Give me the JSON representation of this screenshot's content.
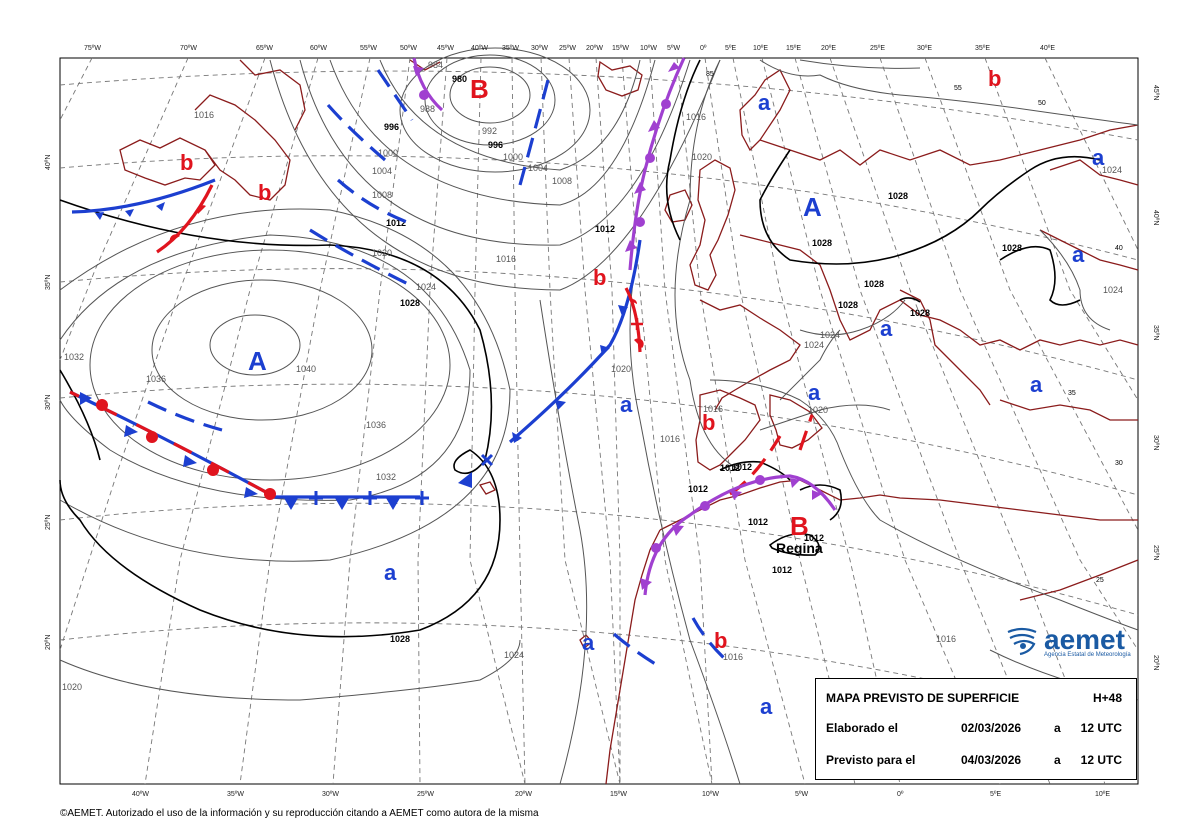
{
  "title_box": {
    "title": "MAPA PREVISTO DE SUPERFICIE",
    "lead": "H+48",
    "made_label": "Elaborado el",
    "made_date": "02/03/2026",
    "made_a": "a",
    "made_time": "12 UTC",
    "valid_label": "Previsto para el",
    "valid_date": "04/03/2026",
    "valid_a": "a",
    "valid_time": "12 UTC"
  },
  "logo": {
    "name": "aemet",
    "subtitle": "Agencia Estatal de Meteorología",
    "icon": "aemet-logo-icon",
    "color": "#1a5aa3"
  },
  "copyright": "©AEMET. Autorizado el uso de la información y su reproducción citando a AEMET como autora de la misma",
  "top_ticks": [
    "75ºW",
    "70ºW",
    "65ºW",
    "60ºW",
    "55ºW",
    "50ºW",
    "45ºW",
    "40ºW",
    "35ºW",
    "30ºW",
    "25ºW",
    "20ºW",
    "15ºW",
    "10ºW",
    "5ºW",
    "0º",
    "5ºE",
    "10ºE",
    "15ºE",
    "20ºE",
    "25ºE",
    "30ºE",
    "35ºE",
    "40ºE"
  ],
  "bottom_ticks": [
    "40ºW",
    "35ºW",
    "30ºW",
    "25ºW",
    "20ºW",
    "15ºW",
    "10ºW",
    "5ºW",
    "0º",
    "5ºE",
    "10ºE"
  ],
  "left_ticks": [
    "40ºN",
    "35ºN",
    "30ºN",
    "25ºN",
    "20ºN"
  ],
  "right_ticks": [
    "45ºN",
    "40ºN",
    "35ºN",
    "30ºN",
    "25ºN",
    "20ºN"
  ],
  "isobar_labels": [
    "980",
    "984",
    "988",
    "992",
    "996",
    "996",
    "1000",
    "1000",
    "1004",
    "1004",
    "1008",
    "1008",
    "1012",
    "1012",
    "1016",
    "1016",
    "1016",
    "1020",
    "1020",
    "1020",
    "1024",
    "1024",
    "1024",
    "1028",
    "1028",
    "1028",
    "1028",
    "1028",
    "1028",
    "1028",
    "1028",
    "1032",
    "1032",
    "1036",
    "1036",
    "1040",
    "1024",
    "1024",
    "1020",
    "1016",
    "1016",
    "1012",
    "1012",
    "1012",
    "1012",
    "1012",
    "1012",
    "1016",
    "1024",
    "1020",
    "1016",
    "85",
    "55",
    "50",
    "40",
    "35",
    "30",
    "25"
  ],
  "pressure_centers": [
    {
      "label": "B",
      "color": "#e0141e"
    },
    {
      "label": "A",
      "color": "#1c3fd0"
    },
    {
      "label": "A",
      "color": "#1c3fd0"
    },
    {
      "label": "B",
      "color": "#e0141e"
    },
    {
      "label": "b",
      "color": "#e0141e"
    },
    {
      "label": "b",
      "color": "#e0141e"
    },
    {
      "label": "b",
      "color": "#e0141e"
    },
    {
      "label": "b",
      "color": "#e0141e"
    },
    {
      "label": "b",
      "color": "#e0141e"
    },
    {
      "label": "b",
      "color": "#e0141e"
    },
    {
      "label": "a",
      "color": "#1c3fd0"
    },
    {
      "label": "a",
      "color": "#1c3fd0"
    },
    {
      "label": "a",
      "color": "#1c3fd0"
    },
    {
      "label": "a",
      "color": "#1c3fd0"
    },
    {
      "label": "a",
      "color": "#1c3fd0"
    },
    {
      "label": "a",
      "color": "#1c3fd0"
    },
    {
      "label": "a",
      "color": "#1c3fd0"
    },
    {
      "label": "a",
      "color": "#1c3fd0"
    },
    {
      "label": "a",
      "color": "#1c3fd0"
    },
    {
      "label": "a",
      "color": "#1c3fd0"
    }
  ],
  "place_label": "Regina",
  "colors": {
    "cold": "#1c3fd0",
    "warm": "#e0141e",
    "occluded": "#a040d0",
    "coast": "#8b1c1c"
  }
}
